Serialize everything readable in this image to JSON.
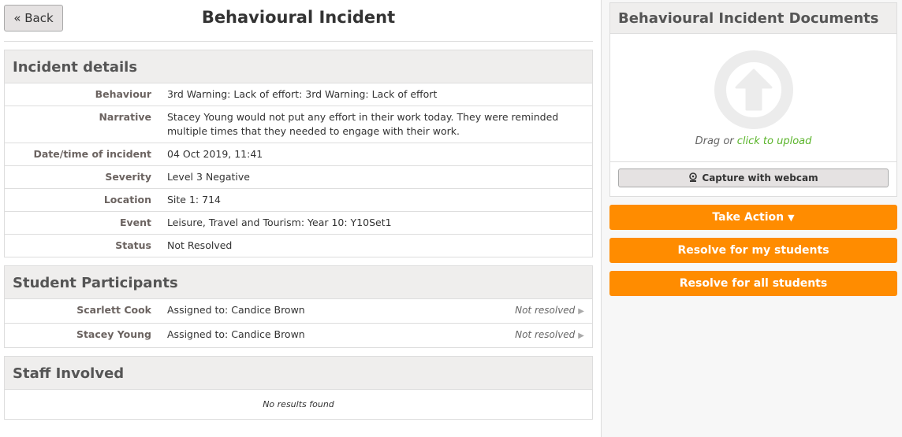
{
  "header": {
    "back_label": "« Back",
    "title": "Behavioural Incident"
  },
  "incident": {
    "title": "Incident details",
    "rows": [
      {
        "label": "Behaviour",
        "value": "3rd Warning: Lack of effort: 3rd Warning: Lack of effort"
      },
      {
        "label": "Narrative",
        "value": "Stacey Young would not put any effort in their work today. They were reminded multiple times that they needed to engage with their work."
      },
      {
        "label": "Date/time of incident",
        "value": "04 Oct 2019, 11:41"
      },
      {
        "label": "Severity",
        "value": "Level 3 Negative"
      },
      {
        "label": "Location",
        "value": "Site 1: 714"
      },
      {
        "label": "Event",
        "value": "Leisure, Travel and Tourism: Year 10: Y10Set1"
      },
      {
        "label": "Status",
        "value": "Not Resolved"
      }
    ]
  },
  "students": {
    "title": "Student Participants",
    "rows": [
      {
        "name": "Scarlett Cook",
        "assigned": "Assigned to: Candice Brown",
        "status": "Not resolved"
      },
      {
        "name": "Stacey Young",
        "assigned": "Assigned to: Candice Brown",
        "status": "Not resolved"
      }
    ]
  },
  "staff": {
    "title": "Staff Involved",
    "empty": "No results found"
  },
  "documents": {
    "title": "Behavioural Incident Documents",
    "drag": "Drag or ",
    "upload_link": "click to upload",
    "webcam": "Capture with webcam"
  },
  "actions": {
    "take_action": "Take Action",
    "resolve_mine": "Resolve for my students",
    "resolve_all": "Resolve for all students"
  },
  "colors": {
    "accent": "#ff8c00",
    "link": "#5ab42a"
  }
}
